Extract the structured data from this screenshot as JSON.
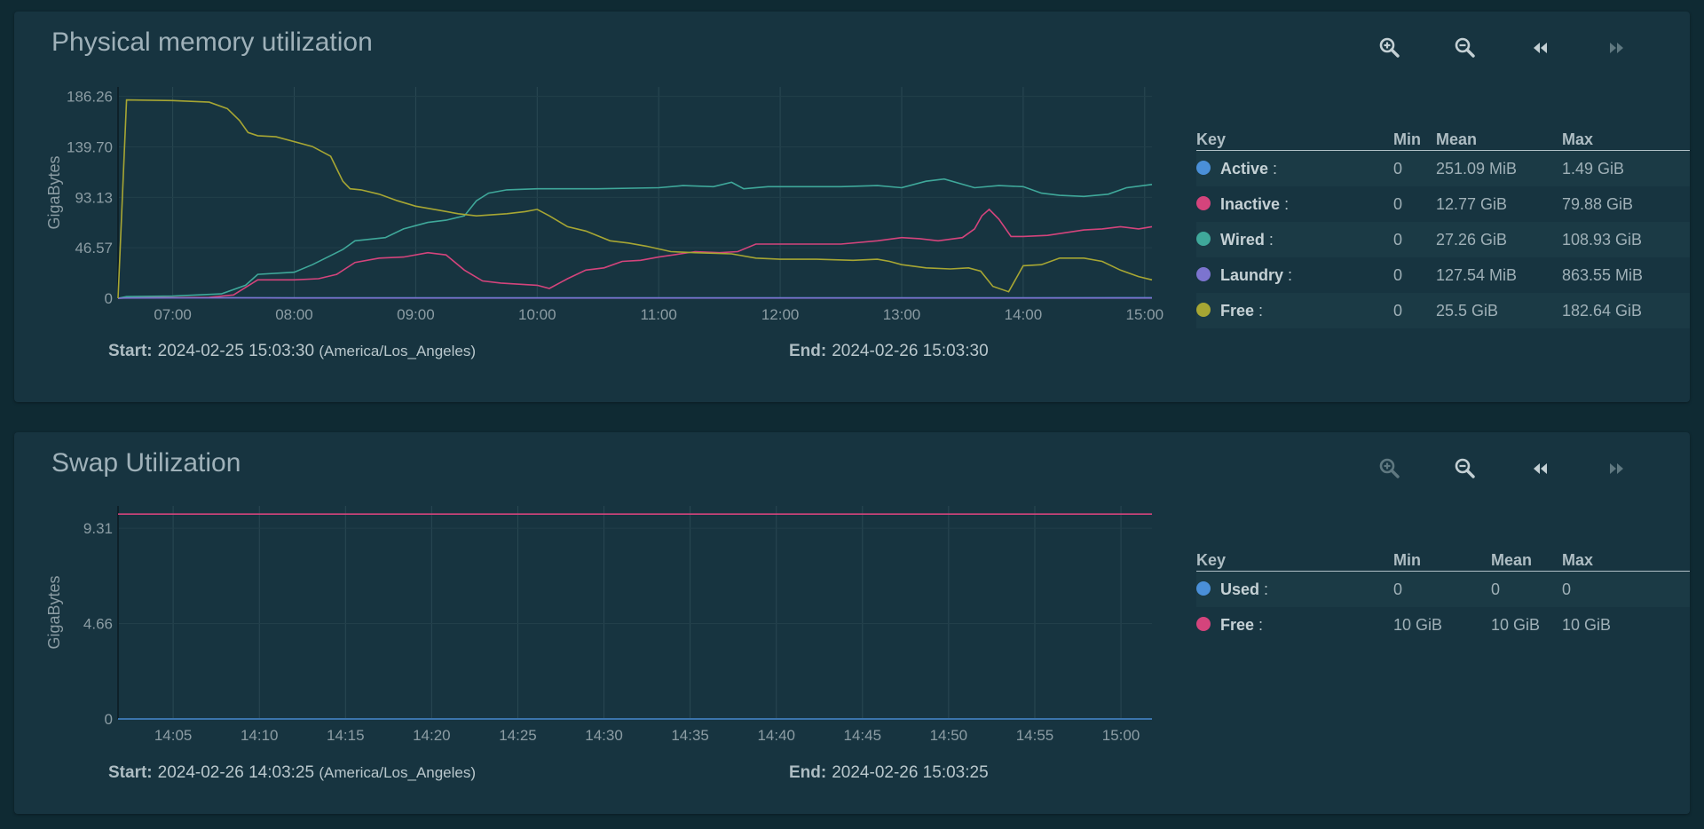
{
  "panels": {
    "memory": {
      "title": "Physical memory utilization",
      "toolbar": {
        "zoom_in": "zoom-in-icon",
        "zoom_out": "zoom-out-icon",
        "back": "rewind-icon",
        "forward": "fast-forward-icon"
      },
      "start_label": "Start:",
      "start_value": "2024-02-25 15:03:30",
      "timezone": "(America/Los_Angeles)",
      "end_label": "End:",
      "end_value": "2024-02-26 15:03:30",
      "legend": {
        "headers": {
          "key": "Key",
          "min": "Min",
          "mean": "Mean",
          "max": "Max"
        },
        "rows": [
          {
            "name": "Active",
            "sep": ":",
            "min": "0",
            "mean": "251.09 MiB",
            "max": "1.49 GiB",
            "color": "#4a8fd8"
          },
          {
            "name": "Inactive",
            "sep": ":",
            "min": "0",
            "mean": "12.77 GiB",
            "max": "79.88 GiB",
            "color": "#d4447c"
          },
          {
            "name": "Wired",
            "sep": ":",
            "min": "0",
            "mean": "27.26 GiB",
            "max": "108.93 GiB",
            "color": "#3fa89a"
          },
          {
            "name": "Laundry",
            "sep": ":",
            "min": "0",
            "mean": "127.54 MiB",
            "max": "863.55 MiB",
            "color": "#7c74cf"
          },
          {
            "name": "Free",
            "sep": ":",
            "min": "0",
            "mean": "25.5 GiB",
            "max": "182.64 GiB",
            "color": "#a7a633"
          }
        ]
      }
    },
    "swap": {
      "title": "Swap Utilization",
      "toolbar": {
        "zoom_in": "zoom-in-icon",
        "zoom_out": "zoom-out-icon",
        "back": "rewind-icon",
        "forward": "fast-forward-icon"
      },
      "start_label": "Start:",
      "start_value": "2024-02-26 14:03:25",
      "timezone": "(America/Los_Angeles)",
      "end_label": "End:",
      "end_value": "2024-02-26 15:03:25",
      "legend": {
        "headers": {
          "key": "Key",
          "min": "Min",
          "mean": "Mean",
          "max": "Max"
        },
        "rows": [
          {
            "name": "Used",
            "sep": ":",
            "min": "0",
            "mean": "0",
            "max": "0",
            "color": "#4a8fd8"
          },
          {
            "name": "Free",
            "sep": ":",
            "min": "10 GiB",
            "mean": "10 GiB",
            "max": "10 GiB",
            "color": "#d4447c"
          }
        ]
      }
    }
  },
  "chart_data": [
    {
      "type": "line",
      "ylabel": "GigaBytes",
      "ylim": [
        0,
        195
      ],
      "yticks": [
        0,
        46.57,
        93.13,
        139.7,
        186.26
      ],
      "ytick_labels": [
        "0",
        "46.57",
        "93.13",
        "139.70",
        "186.26"
      ],
      "xlim": [
        6.55,
        15.06
      ],
      "xticks": [
        7,
        8,
        9,
        10,
        11,
        12,
        13,
        14,
        15
      ],
      "xtick_labels": [
        "07:00",
        "08:00",
        "09:00",
        "10:00",
        "11:00",
        "12:00",
        "13:00",
        "14:00",
        "15:00"
      ],
      "grid": true,
      "series": [
        {
          "name": "Active",
          "color": "#4a8fd8",
          "x": [
            6.55,
            6.62,
            7.0,
            7.5,
            7.9,
            8.3,
            9.0,
            10.0,
            11.0,
            12.0,
            13.0,
            14.0,
            15.06
          ],
          "y": [
            0,
            0.3,
            0.3,
            0.3,
            0.3,
            0.3,
            0.3,
            0.3,
            0.3,
            0.3,
            0.3,
            0.3,
            0.5
          ]
        },
        {
          "name": "Inactive",
          "color": "#d4447c",
          "x": [
            6.55,
            6.62,
            7.0,
            7.3,
            7.5,
            7.6,
            7.7,
            8.0,
            8.2,
            8.35,
            8.5,
            8.7,
            8.9,
            9.1,
            9.25,
            9.4,
            9.55,
            9.7,
            10.0,
            10.1,
            10.25,
            10.4,
            10.55,
            10.7,
            10.85,
            11.0,
            11.3,
            11.5,
            11.65,
            11.8,
            12.0,
            12.5,
            12.8,
            13.0,
            13.15,
            13.3,
            13.5,
            13.6,
            13.66,
            13.72,
            13.8,
            13.9,
            14.0,
            14.2,
            14.5,
            14.65,
            14.8,
            14.95,
            15.06
          ],
          "y": [
            0,
            0.5,
            0.5,
            0.8,
            3,
            10,
            17,
            17,
            18,
            22,
            33,
            37,
            38,
            42,
            40,
            26,
            16,
            14,
            12,
            9,
            18,
            26,
            28,
            34,
            35,
            38,
            43,
            42,
            43,
            50,
            50,
            50,
            53,
            56,
            55,
            53,
            56,
            64,
            76,
            82,
            73,
            57,
            57,
            58,
            63,
            64,
            66,
            64,
            66
          ]
        },
        {
          "name": "Wired",
          "color": "#3fa89a",
          "x": [
            6.55,
            6.62,
            7.0,
            7.4,
            7.6,
            7.7,
            8.0,
            8.15,
            8.4,
            8.5,
            8.75,
            8.9,
            9.0,
            9.1,
            9.25,
            9.4,
            9.5,
            9.6,
            9.75,
            10.0,
            10.5,
            11.0,
            11.2,
            11.45,
            11.6,
            11.7,
            11.9,
            12.5,
            12.8,
            13.0,
            13.2,
            13.35,
            13.6,
            13.8,
            14.0,
            14.15,
            14.3,
            14.5,
            14.7,
            14.85,
            15.06
          ],
          "y": [
            0,
            1.5,
            2,
            4,
            12,
            22,
            24,
            31,
            45,
            53,
            56,
            64,
            67,
            70,
            72,
            76,
            90,
            97,
            100,
            101,
            101,
            102,
            104,
            103,
            107,
            101,
            103,
            103,
            104,
            102,
            108,
            110,
            102,
            104,
            103,
            97,
            95,
            94,
            96,
            102,
            105
          ]
        },
        {
          "name": "Laundry",
          "color": "#7c74cf",
          "x": [
            6.55,
            6.62,
            7.5,
            8.0,
            9.0,
            10.0,
            11.0,
            12.0,
            13.0,
            14.0,
            15.06
          ],
          "y": [
            0,
            0.2,
            0.3,
            0.2,
            0.2,
            0.2,
            0.2,
            0.2,
            0.2,
            0.2,
            0.2
          ]
        },
        {
          "name": "Free",
          "color": "#a7a633",
          "x": [
            6.55,
            6.62,
            7.0,
            7.3,
            7.45,
            7.55,
            7.62,
            7.7,
            7.85,
            8.15,
            8.3,
            8.4,
            8.46,
            8.55,
            8.7,
            8.85,
            9.0,
            9.2,
            9.35,
            9.5,
            9.75,
            9.9,
            10.0,
            10.1,
            10.25,
            10.4,
            10.6,
            10.75,
            10.9,
            11.1,
            11.3,
            11.6,
            11.8,
            12.0,
            12.3,
            12.6,
            12.8,
            12.9,
            13.0,
            13.2,
            13.4,
            13.55,
            13.65,
            13.75,
            13.88,
            14.0,
            14.15,
            14.3,
            14.5,
            14.65,
            14.8,
            14.95,
            15.06
          ],
          "y": [
            0,
            183,
            182.5,
            181,
            175,
            164,
            153,
            150,
            149,
            140,
            131,
            108,
            101,
            100,
            96,
            90,
            85,
            81,
            78,
            76,
            78,
            80,
            82,
            76,
            66,
            62,
            53,
            51,
            48,
            43,
            42,
            41,
            37,
            36,
            36,
            35,
            36,
            34,
            31,
            28,
            27,
            28,
            25,
            11,
            6,
            30,
            31,
            37,
            37,
            34,
            26,
            20,
            17
          ]
        }
      ]
    },
    {
      "type": "line",
      "ylabel": "GigaBytes",
      "ylim": [
        0,
        10.4
      ],
      "yticks": [
        0,
        4.66,
        9.31
      ],
      "ytick_labels": [
        "0",
        "4.66",
        "9.31"
      ],
      "xlim": [
        14.03,
        15.03
      ],
      "xticks": [
        14.0833,
        14.1667,
        14.25,
        14.3333,
        14.4167,
        14.5,
        14.5833,
        14.6667,
        14.75,
        14.8333,
        14.9167,
        15.0
      ],
      "xtick_labels": [
        "14:05",
        "14:10",
        "14:15",
        "14:20",
        "14:25",
        "14:30",
        "14:35",
        "14:40",
        "14:45",
        "14:50",
        "14:55",
        "15:00"
      ],
      "grid": true,
      "series": [
        {
          "name": "Used",
          "color": "#4a8fd8",
          "x": [
            14.03,
            15.03
          ],
          "y": [
            0,
            0
          ]
        },
        {
          "name": "Free",
          "color": "#d4447c",
          "x": [
            14.03,
            15.03
          ],
          "y": [
            10,
            10
          ]
        }
      ]
    }
  ]
}
